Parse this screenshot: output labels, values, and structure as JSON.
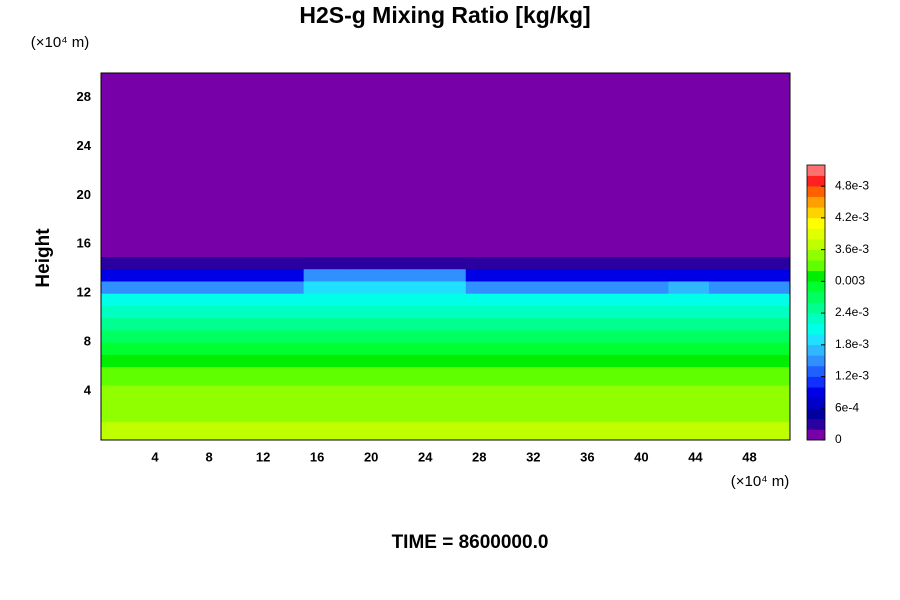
{
  "chart_data": {
    "type": "heatmap",
    "title": "H2S-g Mixing Ratio [kg/kg]",
    "ylabel": "Height",
    "y_unit": "(×10⁴ m)",
    "x_unit": "(×10⁴ m)",
    "footer": "TIME = 8600000.0",
    "xlim": [
      0,
      51
    ],
    "ylim": [
      0,
      30
    ],
    "xticks": [
      4,
      8,
      12,
      16,
      20,
      24,
      28,
      32,
      36,
      40,
      44,
      48
    ],
    "yticks": [
      4,
      8,
      12,
      16,
      20,
      24,
      28
    ],
    "xbins": [
      0,
      3,
      6,
      9,
      12,
      15,
      18,
      21,
      24,
      27,
      30,
      33,
      36,
      39,
      42,
      45,
      48,
      51
    ],
    "ybins": [
      0,
      1.5,
      3,
      4.5,
      6,
      7,
      8,
      9,
      10,
      11,
      12,
      13,
      14,
      15,
      30
    ],
    "values": [
      [
        0.0037,
        0.0037,
        0.0037,
        0.0037,
        0.0037,
        0.0037,
        0.0037,
        0.0037,
        0.0037,
        0.0037,
        0.0037,
        0.0037,
        0.0037,
        0.0037,
        0.0037,
        0.0037,
        0.0037
      ],
      [
        0.0035,
        0.0035,
        0.0035,
        0.0035,
        0.0035,
        0.0035,
        0.0035,
        0.0035,
        0.0035,
        0.0035,
        0.0035,
        0.0035,
        0.0035,
        0.0035,
        0.0035,
        0.0035,
        0.0035
      ],
      [
        0.0035,
        0.0035,
        0.0035,
        0.0035,
        0.0035,
        0.0035,
        0.0035,
        0.0035,
        0.0035,
        0.0035,
        0.0035,
        0.0035,
        0.0035,
        0.0035,
        0.0035,
        0.0035,
        0.0035
      ],
      [
        0.0033,
        0.0033,
        0.0033,
        0.0033,
        0.0033,
        0.0033,
        0.0033,
        0.0033,
        0.0033,
        0.0033,
        0.0033,
        0.0033,
        0.0033,
        0.0033,
        0.0033,
        0.0033,
        0.0033
      ],
      [
        0.0031,
        0.0031,
        0.0031,
        0.0031,
        0.0031,
        0.0031,
        0.0031,
        0.0031,
        0.0031,
        0.0031,
        0.0031,
        0.0031,
        0.0031,
        0.0031,
        0.0031,
        0.0031,
        0.0031
      ],
      [
        0.0029,
        0.0029,
        0.0029,
        0.0029,
        0.0029,
        0.0029,
        0.0029,
        0.0029,
        0.0029,
        0.0029,
        0.0029,
        0.0029,
        0.0029,
        0.0029,
        0.0029,
        0.0029,
        0.0029
      ],
      [
        0.0027,
        0.0027,
        0.0027,
        0.0027,
        0.0027,
        0.0027,
        0.0027,
        0.0027,
        0.0027,
        0.0027,
        0.0027,
        0.0027,
        0.0027,
        0.0027,
        0.0027,
        0.0027,
        0.0027
      ],
      [
        0.0025,
        0.0025,
        0.0025,
        0.0025,
        0.0025,
        0.0025,
        0.0025,
        0.0025,
        0.0025,
        0.0025,
        0.0025,
        0.0025,
        0.0025,
        0.0025,
        0.0025,
        0.0025,
        0.0025
      ],
      [
        0.0023,
        0.0023,
        0.0023,
        0.0023,
        0.0023,
        0.0023,
        0.0023,
        0.0023,
        0.0023,
        0.0023,
        0.0023,
        0.0023,
        0.0023,
        0.0023,
        0.0023,
        0.0023,
        0.0023
      ],
      [
        0.002,
        0.002,
        0.002,
        0.002,
        0.002,
        0.0021,
        0.0021,
        0.0021,
        0.0021,
        0.002,
        0.002,
        0.002,
        0.002,
        0.002,
        0.002,
        0.002,
        0.002
      ],
      [
        0.0015,
        0.0015,
        0.0015,
        0.0015,
        0.0015,
        0.0019,
        0.0019,
        0.0019,
        0.0019,
        0.0015,
        0.0015,
        0.0015,
        0.0015,
        0.0015,
        0.0017,
        0.0015,
        0.0015
      ],
      [
        0.0008,
        0.0008,
        0.0008,
        0.0008,
        0.0008,
        0.0014,
        0.0014,
        0.0014,
        0.0014,
        0.0008,
        0.0008,
        0.0008,
        0.0008,
        0.0008,
        0.0008,
        0.0008,
        0.0008
      ],
      [
        0.0003,
        0.0003,
        0.0003,
        0.0003,
        0.0003,
        0.0003,
        0.0003,
        0.0003,
        0.0003,
        0.0003,
        0.0003,
        0.0003,
        0.0003,
        0.0003,
        0.0003,
        0.0003,
        0.0003
      ],
      [
        0,
        0,
        0,
        0,
        0,
        0,
        0,
        0,
        0,
        0,
        0,
        0,
        0,
        0,
        0,
        0,
        0
      ]
    ],
    "clim": [
      0,
      0.0052
    ],
    "colors": [
      "#7700a8",
      "#2a00a0",
      "#0000a0",
      "#0000c8",
      "#0000e6",
      "#1030ff",
      "#2060ff",
      "#3090ff",
      "#30b8ff",
      "#20e0ff",
      "#00ffe8",
      "#00ffc0",
      "#00ff90",
      "#00ff60",
      "#00ff30",
      "#00ee00",
      "#60ff00",
      "#90ff00",
      "#c0ff00",
      "#e0ff00",
      "#ffff00",
      "#ffd200",
      "#ffa000",
      "#ff6000",
      "#ff2020",
      "#ff7070"
    ],
    "cticks": [
      0,
      {
        "value": 0.0006,
        "label": "6e-4"
      },
      {
        "value": 0.0012,
        "label": "1.2e-3"
      },
      {
        "value": 0.0018,
        "label": "1.8e-3"
      },
      {
        "value": 0.0024,
        "label": "2.4e-3"
      },
      0.003,
      {
        "value": 0.0036,
        "label": "3.6e-3"
      },
      {
        "value": 0.0042,
        "label": "4.2e-3"
      },
      {
        "value": 0.0048,
        "label": "4.8e-3"
      }
    ]
  }
}
